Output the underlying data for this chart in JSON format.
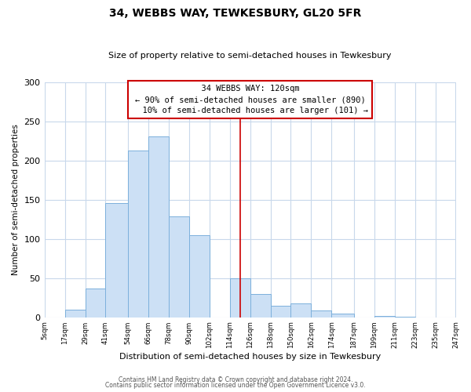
{
  "title": "34, WEBBS WAY, TEWKESBURY, GL20 5FR",
  "subtitle": "Size of property relative to semi-detached houses in Tewkesbury",
  "xlabel": "Distribution of semi-detached houses by size in Tewkesbury",
  "ylabel": "Number of semi-detached properties",
  "bin_edges": [
    5,
    17,
    29,
    41,
    54,
    66,
    78,
    90,
    102,
    114,
    126,
    138,
    150,
    162,
    174,
    187,
    199,
    211,
    223,
    235,
    247
  ],
  "bar_heights": [
    0,
    10,
    37,
    146,
    213,
    231,
    129,
    105,
    0,
    50,
    30,
    15,
    18,
    9,
    5,
    0,
    2,
    1,
    0,
    0
  ],
  "tick_labels": [
    "5sqm",
    "17sqm",
    "29sqm",
    "41sqm",
    "54sqm",
    "66sqm",
    "78sqm",
    "90sqm",
    "102sqm",
    "114sqm",
    "126sqm",
    "138sqm",
    "150sqm",
    "162sqm",
    "174sqm",
    "187sqm",
    "199sqm",
    "211sqm",
    "223sqm",
    "235sqm",
    "247sqm"
  ],
  "tick_positions": [
    5,
    17,
    29,
    41,
    54,
    66,
    78,
    90,
    102,
    114,
    126,
    138,
    150,
    162,
    174,
    187,
    199,
    211,
    223,
    235,
    247
  ],
  "bar_color": "#cce0f5",
  "bar_edge_color": "#7cb0dc",
  "property_line_x": 120,
  "property_label": "34 WEBBS WAY: 120sqm",
  "pct_smaller": 90,
  "count_smaller": 890,
  "pct_larger": 10,
  "count_larger": 101,
  "line_color": "#cc0000",
  "box_edge_color": "#cc0000",
  "ylim": [
    0,
    300
  ],
  "yticks": [
    0,
    50,
    100,
    150,
    200,
    250,
    300
  ],
  "xlim": [
    5,
    247
  ],
  "footer_line1": "Contains HM Land Registry data © Crown copyright and database right 2024.",
  "footer_line2": "Contains public sector information licensed under the Open Government Licence v3.0.",
  "background_color": "#ffffff",
  "grid_color": "#c8d8eb"
}
